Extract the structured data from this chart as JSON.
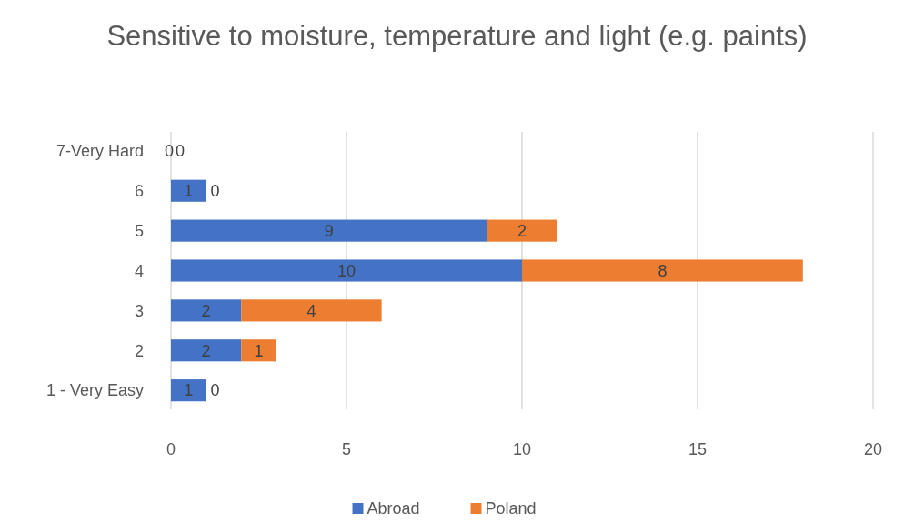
{
  "chart_data": {
    "type": "bar",
    "orientation": "horizontal",
    "stacked": true,
    "title": "Sensitive to moisture, temperature and light (e.g. paints)",
    "categories": [
      "7-Very Hard",
      "6",
      "5",
      "4",
      "3",
      "2",
      "1 - Very Easy"
    ],
    "series": [
      {
        "name": "Abroad",
        "color": "#4472c4",
        "values": [
          0,
          1,
          9,
          10,
          2,
          2,
          1
        ]
      },
      {
        "name": "Poland",
        "color": "#ed7d31",
        "values": [
          0,
          0,
          2,
          8,
          4,
          1,
          0
        ]
      }
    ],
    "xlim": [
      0,
      20
    ],
    "xticks": [
      0,
      5,
      10,
      15,
      20
    ],
    "grid": "x",
    "legend": "bottom",
    "data_labels": true
  }
}
